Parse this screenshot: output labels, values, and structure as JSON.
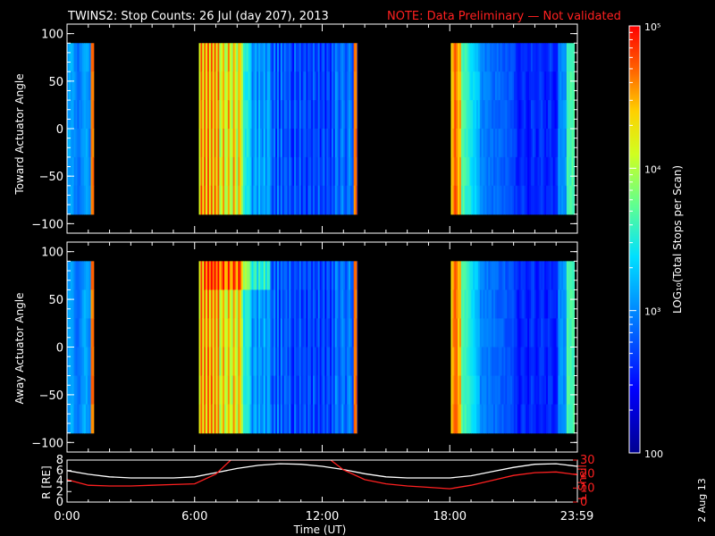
{
  "header": {
    "title": "TWINS2: Stop Counts: 26 Jul (day 207), 2013",
    "note": "NOTE: Data Preliminary — Not validated"
  },
  "footer_date": "2 Aug 13",
  "colorbar": {
    "label": "LOG₁₀(Total Stops per Scan)",
    "ticks": [
      "10⁵",
      "10⁴",
      "10³",
      "100"
    ],
    "tick_values": [
      100000,
      10000,
      1000,
      100
    ]
  },
  "colors": {
    "axis": "#ffffff",
    "note": "#ff2020",
    "background": "#000000"
  },
  "chart_data": [
    {
      "type": "heatmap",
      "ylabel": "Toward Actuator Angle",
      "yticks": [
        "100",
        "50",
        "0",
        "−50",
        "−100"
      ],
      "ylim": [
        -110,
        110
      ],
      "xlim": [
        0,
        24
      ],
      "data_y_range": [
        -90,
        90
      ],
      "data_intervals_hours": [
        [
          0.0,
          1.25
        ],
        [
          6.2,
          13.65
        ],
        [
          18.05,
          23.85
        ]
      ],
      "colorscale": "log",
      "value_range": [
        100,
        100000
      ]
    },
    {
      "type": "heatmap",
      "ylabel": "Away Actuator Angle",
      "yticks": [
        "100",
        "50",
        "0",
        "−50",
        "−100"
      ],
      "ylim": [
        -110,
        110
      ],
      "xlim": [
        0,
        24
      ],
      "data_y_range": [
        -90,
        90
      ],
      "data_intervals_hours": [
        [
          0.0,
          1.25
        ],
        [
          6.2,
          13.65
        ],
        [
          18.05,
          23.85
        ]
      ],
      "colorscale": "log",
      "value_range": [
        100,
        100000
      ]
    },
    {
      "type": "line",
      "xlabel": "Time (UT)",
      "xticks": [
        "0:00",
        "6:00",
        "12:00",
        "18:00",
        "23:59"
      ],
      "xtick_hours": [
        0,
        6,
        12,
        18,
        23.98
      ],
      "ylabel_left": "R [RE]",
      "ylabel_right": "L Shell",
      "yticks_left": [
        "8",
        "6",
        "4",
        "2",
        "0"
      ],
      "yticks_right": [
        "30",
        "20",
        "10",
        "0"
      ],
      "ylim_left": [
        0,
        8
      ],
      "ylim_right": [
        0,
        30
      ],
      "series": [
        {
          "name": "R [RE]",
          "color": "#ffffff",
          "axis": "left",
          "x": [
            0,
            1,
            2,
            3,
            4,
            5,
            6,
            7,
            8,
            9,
            10,
            11,
            12,
            13,
            14,
            15,
            16,
            17,
            18,
            19,
            20,
            21,
            22,
            23,
            24
          ],
          "y": [
            6.0,
            5.3,
            4.8,
            4.6,
            4.6,
            4.6,
            4.8,
            5.6,
            6.4,
            7.0,
            7.3,
            7.2,
            6.8,
            6.2,
            5.4,
            4.8,
            4.6,
            4.6,
            4.6,
            5.0,
            5.8,
            6.6,
            7.2,
            7.3,
            6.8
          ]
        },
        {
          "name": "L Shell",
          "color": "#ff2020",
          "axis": "right",
          "x": [
            0,
            1,
            2,
            3,
            4,
            5,
            6,
            7,
            7.7,
            12.4,
            13,
            14,
            15,
            16,
            17,
            18,
            19,
            20,
            21,
            22,
            23,
            24
          ],
          "y": [
            16,
            12,
            11.5,
            11.5,
            12,
            12.5,
            13,
            20,
            30,
            30,
            23,
            16,
            13,
            11.5,
            10.5,
            9.5,
            12,
            15.5,
            19,
            21,
            21.5,
            19.5
          ]
        }
      ]
    }
  ]
}
